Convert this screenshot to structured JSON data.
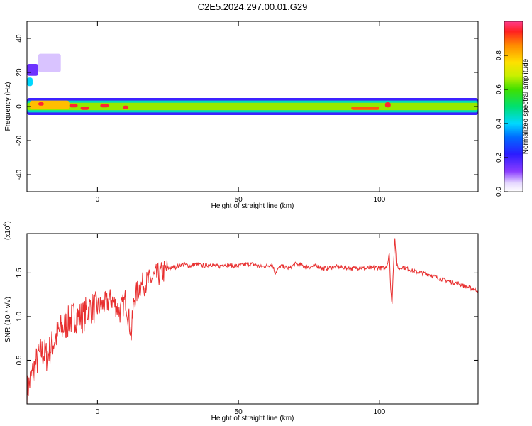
{
  "page_title": "C2E5.2024.297.00.01.G29",
  "chart_data": [
    {
      "type": "heatmap",
      "xlabel": "Height of straight line (km)",
      "ylabel": "Frequency (Hz)",
      "xlim": [
        -25,
        135
      ],
      "ylim": [
        -50,
        50
      ],
      "x_ticks": [
        0,
        50,
        100
      ],
      "y_ticks": [
        -40,
        -20,
        0,
        20,
        40
      ],
      "colorbar": {
        "label": "Normalized spectral amplitude",
        "range": [
          0,
          1
        ],
        "ticks": [
          0.0,
          0.2,
          0.4,
          0.6,
          0.8
        ]
      },
      "bands": [
        {
          "x0": -25,
          "x1": 135,
          "f0": -5,
          "f1": 5,
          "level": 0.2
        },
        {
          "x0": -25,
          "x1": 135,
          "f0": -3.5,
          "f1": 3.5,
          "level": 0.45
        },
        {
          "x0": -25,
          "x1": 135,
          "f0": -2.2,
          "f1": 2.2,
          "level": 0.65
        },
        {
          "x0": -24,
          "x1": -10,
          "f0": -1.5,
          "f1": 3.5,
          "level": 0.8
        },
        {
          "x0": -21,
          "x1": -19,
          "f0": 0.5,
          "f1": 2.5,
          "level": 0.95
        },
        {
          "x0": -10,
          "x1": -7,
          "f0": -0.5,
          "f1": 1.5,
          "level": 0.95
        },
        {
          "x0": -6,
          "x1": -3,
          "f0": -2.0,
          "f1": 0.0,
          "level": 0.95
        },
        {
          "x0": 1,
          "x1": 4,
          "f0": -0.5,
          "f1": 1.5,
          "level": 0.95
        },
        {
          "x0": 9,
          "x1": 11,
          "f0": -1.5,
          "f1": 0.5,
          "level": 0.95
        },
        {
          "x0": 90,
          "x1": 100,
          "f0": -2.0,
          "f1": 0.0,
          "level": 0.9
        },
        {
          "x0": 102,
          "x1": 104,
          "f0": -0.5,
          "f1": 2.5,
          "level": 0.95
        },
        {
          "x0": -25,
          "x1": -23,
          "f0": 12,
          "f1": 17,
          "level": 0.4
        },
        {
          "x0": -25,
          "x1": -21,
          "f0": 18,
          "f1": 25,
          "level": 0.15
        },
        {
          "x0": -21,
          "x1": -13,
          "f0": 20,
          "f1": 31,
          "level": 0.06
        }
      ]
    },
    {
      "type": "line",
      "xlabel": "Height of straight line (km)",
      "ylabel": "SNR (10 * v/v)",
      "y_multiplier": "(x10",
      "y_multiplier_exp": "4",
      "y_multiplier_close": ")",
      "xlim": [
        -25,
        135
      ],
      "ylim": [
        0,
        1.95
      ],
      "x_ticks": [
        0,
        50,
        100
      ],
      "y_ticks": [
        0.5,
        1.0,
        1.5
      ],
      "series": [
        {
          "color": "#e83030",
          "x": [
            -25,
            -22,
            -20,
            -18,
            -15,
            -13,
            -10,
            -8,
            -5,
            -3,
            0,
            3,
            5,
            8,
            10,
            12,
            13,
            15,
            18,
            20,
            23,
            25,
            28,
            30,
            33,
            35,
            38,
            40,
            43,
            45,
            48,
            50,
            53,
            55,
            58,
            60,
            62,
            63,
            65,
            68,
            70,
            73,
            75,
            78,
            80,
            83,
            85,
            88,
            90,
            93,
            95,
            98,
            100,
            102,
            103,
            103.5,
            104,
            104.5,
            105,
            105.5,
            106,
            107,
            108,
            110,
            112,
            115,
            118,
            120,
            123,
            125,
            128,
            130,
            133,
            135
          ],
          "y": [
            0.15,
            0.45,
            0.6,
            0.55,
            0.75,
            0.85,
            0.95,
            1.0,
            1.0,
            1.1,
            1.1,
            1.15,
            1.2,
            1.05,
            1.2,
            0.8,
            1.2,
            1.35,
            1.4,
            1.45,
            1.5,
            1.55,
            1.57,
            1.6,
            1.58,
            1.6,
            1.58,
            1.6,
            1.57,
            1.6,
            1.58,
            1.58,
            1.6,
            1.6,
            1.57,
            1.58,
            1.6,
            1.5,
            1.58,
            1.55,
            1.6,
            1.58,
            1.57,
            1.58,
            1.55,
            1.56,
            1.57,
            1.56,
            1.55,
            1.56,
            1.55,
            1.56,
            1.56,
            1.55,
            1.62,
            1.75,
            1.3,
            1.15,
            1.6,
            1.92,
            1.6,
            1.55,
            1.57,
            1.55,
            1.52,
            1.5,
            1.48,
            1.45,
            1.42,
            1.4,
            1.38,
            1.35,
            1.32,
            1.3
          ]
        }
      ]
    }
  ]
}
